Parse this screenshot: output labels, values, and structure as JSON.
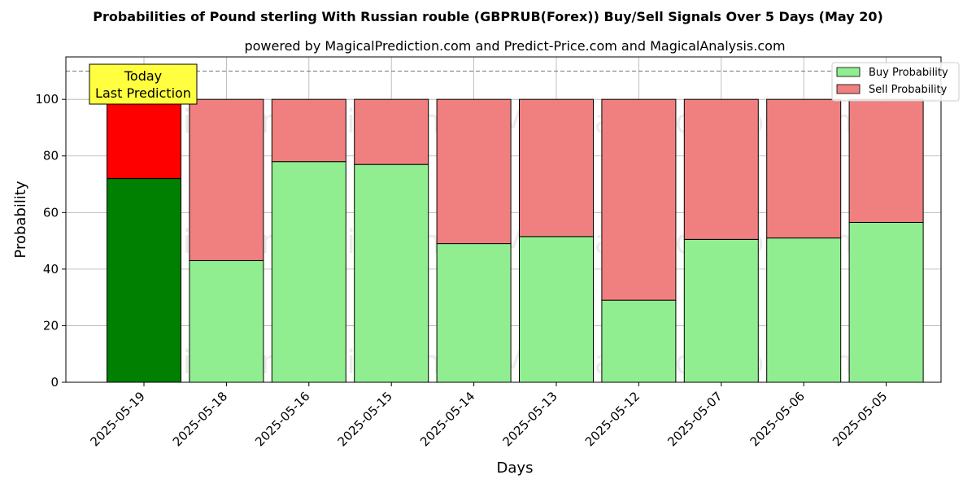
{
  "chart_data": {
    "type": "bar",
    "stacked": true,
    "title": "Probabilities of Pound sterling With Russian rouble (GBPRUB(Forex)) Buy/Sell Signals Over 5 Days (May 20)",
    "subtitle": "powered by MagicalPrediction.com and Predict-Price.com and MagicalAnalysis.com",
    "xlabel": "Days",
    "ylabel": "Probability",
    "ylim": [
      0,
      115
    ],
    "yticks": [
      0,
      20,
      40,
      60,
      80,
      100
    ],
    "threshold_line": 110,
    "categories": [
      "2025-05-19",
      "2025-05-18",
      "2025-05-16",
      "2025-05-15",
      "2025-05-14",
      "2025-05-13",
      "2025-05-12",
      "2025-05-07",
      "2025-05-06",
      "2025-05-05"
    ],
    "series": [
      {
        "name": "Buy Probability",
        "values": [
          72,
          43,
          78,
          77,
          49,
          51.5,
          29,
          50.5,
          51,
          56.5
        ]
      },
      {
        "name": "Sell Probability",
        "values": [
          28,
          57,
          22,
          23,
          51,
          48.5,
          71,
          49.5,
          49,
          43.5
        ]
      }
    ],
    "colors": {
      "buy": "#90ee90",
      "sell": "#f08080",
      "buy_highlight": "#008000",
      "sell_highlight": "#ff0000",
      "annotation_bg": "#ffff40"
    },
    "legend": {
      "position": "top-right",
      "entries": [
        "Buy Probability",
        "Sell Probability"
      ]
    },
    "annotation": {
      "line1": "Today",
      "line2": "Last Prediction"
    },
    "watermarks": [
      "MagicalAnalysis.com",
      "MagicalPrediction.com"
    ],
    "grid": true
  }
}
